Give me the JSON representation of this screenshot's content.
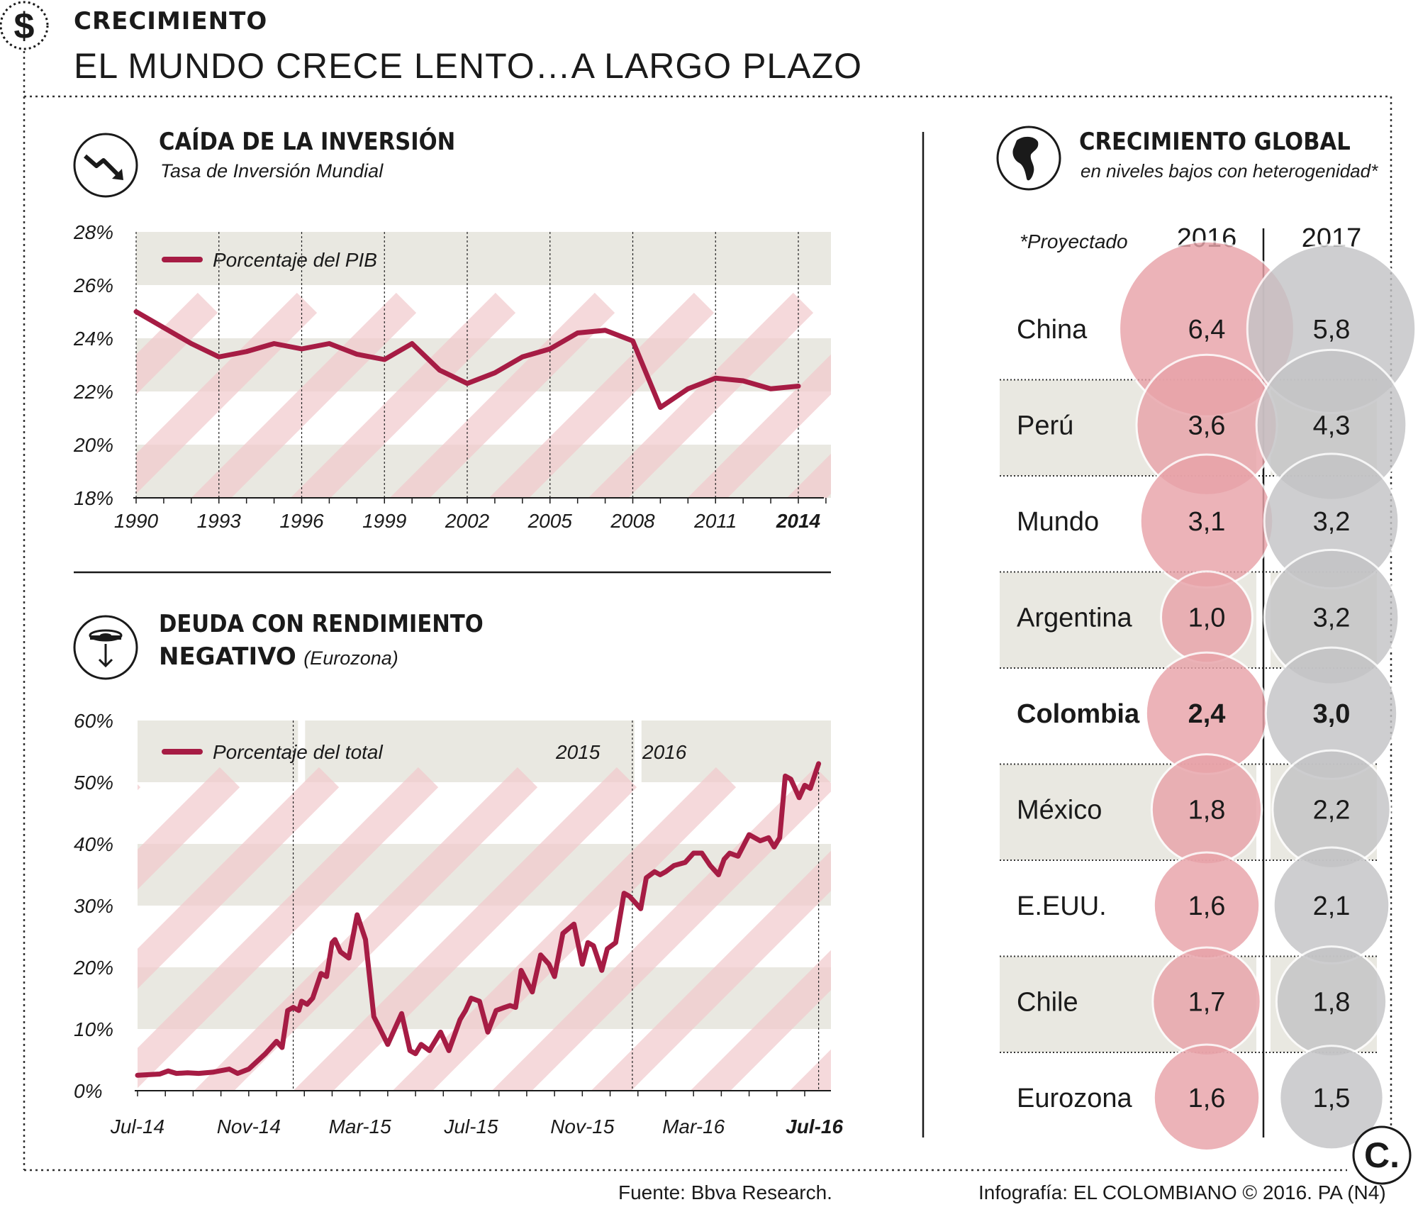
{
  "header": {
    "kicker": "CRECIMIENTO",
    "title": "EL MUNDO CRECE LENTO…A LARGO PLAZO",
    "icon": "dollar-icon"
  },
  "chart1": {
    "heading": "CAÍDA DE LA INVERSIÓN",
    "subtitle": "Tasa de Inversión Mundial",
    "icon": "trend-down-icon"
  },
  "chart2": {
    "heading_line1": "DEUDA CON RENDIMIENTO",
    "heading_line2": "NEGATIVO",
    "heading_paren": "(Eurozona)",
    "icon": "coin-down-icon"
  },
  "panel": {
    "heading": "CRECIMIENTO GLOBAL",
    "subtitle": "en niveles bajos con heterogenidad*",
    "note": "*Proyectado",
    "icon": "globe-icon",
    "col2016": "2016",
    "col2017": "2017",
    "color2016": "#e8a3a9",
    "color2017": "#c4c4c6"
  },
  "footer": {
    "source": "Fuente: Bbva Research.",
    "credit": "Infografía: EL COLOMBIANO © 2016. PA (N4)",
    "logo": "C."
  },
  "colors": {
    "line": "#a61c44",
    "band": "#e9e8e1",
    "stripe": "#f2c9cc"
  },
  "chart_data": [
    {
      "type": "line",
      "title": "CAÍDA DE LA INVERSIÓN",
      "subtitle": "Tasa de Inversión Mundial",
      "legend": "Porcentaje del PIB",
      "ylabel": "%",
      "ylim": [
        18,
        28
      ],
      "yticks": [
        "18%",
        "20%",
        "22%",
        "24%",
        "26%",
        "28%"
      ],
      "xticks": [
        "1990",
        "1993",
        "1996",
        "1999",
        "2002",
        "2005",
        "2008",
        "2011",
        "2014"
      ],
      "series": [
        {
          "name": "Porcentaje del PIB",
          "x": [
            1990,
            1991,
            1992,
            1993,
            1994,
            1995,
            1996,
            1997,
            1998,
            1999,
            2000,
            2001,
            2002,
            2003,
            2004,
            2005,
            2006,
            2007,
            2008,
            2009,
            2010,
            2011,
            2012,
            2013,
            2014
          ],
          "values": [
            25.0,
            24.4,
            23.8,
            23.3,
            23.5,
            23.8,
            23.6,
            23.8,
            23.4,
            23.2,
            23.8,
            22.8,
            22.3,
            22.7,
            23.3,
            23.6,
            24.2,
            24.3,
            23.9,
            21.4,
            22.1,
            22.5,
            22.4,
            22.1,
            22.2
          ]
        }
      ]
    },
    {
      "type": "line",
      "title": "DEUDA CON RENDIMIENTO NEGATIVO",
      "subtitle": "(Eurozona)",
      "legend": "Porcentaje del total",
      "ylim": [
        0,
        60
      ],
      "yticks": [
        "0%",
        "10%",
        "20%",
        "30%",
        "40%",
        "50%",
        "60%"
      ],
      "xticks": [
        "Jul-14",
        "Nov-14",
        "Mar-15",
        "Jul-15",
        "Nov-15",
        "Mar-16",
        "Jul-16"
      ],
      "annotations": [
        "2015",
        "2016"
      ],
      "series": [
        {
          "name": "Porcentaje del total",
          "x_months_since_jul14": [
            0,
            0.8,
            1.1,
            1.4,
            1.8,
            2.2,
            2.7,
            3.3,
            3.6,
            4.0,
            4.6,
            5.0,
            5.2,
            5.4,
            5.6,
            5.8,
            5.9,
            6.1,
            6.3,
            6.6,
            6.8,
            7.0,
            7.1,
            7.3,
            7.6,
            7.9,
            8.2,
            8.5,
            9.0,
            9.2,
            9.5,
            9.8,
            10.0,
            10.2,
            10.5,
            10.9,
            11.2,
            11.6,
            11.8,
            12.0,
            12.3,
            12.6,
            12.9,
            13.2,
            13.4,
            13.6,
            13.8,
            14.2,
            14.5,
            14.8,
            15.0,
            15.3,
            15.7,
            16.0,
            16.2,
            16.4,
            16.7,
            16.9,
            17.2,
            17.5,
            17.7,
            18.1,
            18.3,
            18.6,
            18.8,
            19.0,
            19.3,
            19.7,
            20.0,
            20.3,
            20.6,
            20.9,
            21.1,
            21.3,
            21.6,
            22.0,
            22.2,
            22.4,
            22.7,
            22.9,
            23.1,
            23.3,
            23.5,
            23.8,
            24.0,
            24.2,
            24.5
          ],
          "values": [
            2.5,
            2.7,
            3.2,
            2.8,
            2.9,
            2.8,
            3.0,
            3.5,
            2.8,
            3.5,
            6.0,
            8.0,
            7.0,
            13.0,
            13.5,
            13.0,
            14.5,
            14.0,
            15.0,
            19.0,
            18.5,
            24.0,
            24.5,
            22.5,
            21.5,
            28.5,
            24.5,
            12.0,
            7.5,
            9.5,
            12.5,
            6.5,
            6.0,
            7.5,
            6.5,
            9.5,
            6.5,
            11.5,
            13.0,
            15.0,
            14.5,
            9.5,
            13.0,
            13.5,
            13.8,
            13.5,
            19.5,
            16.0,
            22.0,
            20.5,
            18.5,
            25.5,
            27.0,
            20.5,
            24.0,
            23.5,
            19.5,
            23.0,
            24.0,
            32.0,
            31.5,
            29.5,
            34.5,
            35.5,
            35.0,
            35.5,
            36.5,
            37.0,
            38.5,
            38.5,
            36.5,
            35.0,
            37.5,
            38.5,
            38.0,
            41.5,
            41.0,
            40.5,
            41.0,
            39.5,
            41.0,
            51.0,
            50.5,
            47.5,
            49.5,
            49.0,
            53.0
          ]
        }
      ]
    },
    {
      "type": "bubble-table",
      "title": "CRECIMIENTO GLOBAL",
      "subtitle": "en niveles bajos con heterogenidad*",
      "columns": [
        "2016",
        "2017"
      ],
      "rows": [
        {
          "name": "China",
          "v2016": "6,4",
          "v2017": "5,8",
          "n2016": 6.4,
          "n2017": 5.8,
          "bold": false
        },
        {
          "name": "Perú",
          "v2016": "3,6",
          "v2017": "4,3",
          "n2016": 3.6,
          "n2017": 4.3,
          "bold": false
        },
        {
          "name": "Mundo",
          "v2016": "3,1",
          "v2017": "3,2",
          "n2016": 3.1,
          "n2017": 3.2,
          "bold": false
        },
        {
          "name": "Argentina",
          "v2016": "1,0",
          "v2017": "3,2",
          "n2016": 1.0,
          "n2017": 3.2,
          "bold": false
        },
        {
          "name": "Colombia",
          "v2016": "2,4",
          "v2017": "3,0",
          "n2016": 2.4,
          "n2017": 3.0,
          "bold": true
        },
        {
          "name": "México",
          "v2016": "1,8",
          "v2017": "2,2",
          "n2016": 1.8,
          "n2017": 2.2,
          "bold": false
        },
        {
          "name": "E.EUU.",
          "v2016": "1,6",
          "v2017": "2,1",
          "n2016": 1.6,
          "n2017": 2.1,
          "bold": false
        },
        {
          "name": "Chile",
          "v2016": "1,7",
          "v2017": "1,8",
          "n2016": 1.7,
          "n2017": 1.8,
          "bold": false
        },
        {
          "name": "Eurozona",
          "v2016": "1,6",
          "v2017": "1,5",
          "n2016": 1.6,
          "n2017": 1.5,
          "bold": false
        }
      ]
    }
  ]
}
